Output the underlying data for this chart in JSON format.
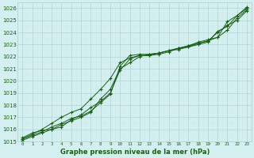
{
  "bg_color": "#d4efef",
  "grid_color_major": "#b8d8d8",
  "grid_color_minor": "#c8e8e8",
  "line_color": "#1a5e1a",
  "text_color": "#1a5e1a",
  "xlabel": "Graphe pression niveau de la mer (hPa)",
  "ylim": [
    1015,
    1026.5
  ],
  "xlim": [
    -0.5,
    23.5
  ],
  "yticks": [
    1015,
    1016,
    1017,
    1018,
    1019,
    1020,
    1021,
    1022,
    1023,
    1024,
    1025,
    1026
  ],
  "xticks": [
    0,
    1,
    2,
    3,
    4,
    5,
    6,
    7,
    8,
    9,
    10,
    11,
    12,
    13,
    14,
    15,
    16,
    17,
    18,
    19,
    20,
    21,
    22,
    23
  ],
  "series": [
    [
      1015.3,
      1015.7,
      1015.9,
      1016.0,
      1016.2,
      1016.8,
      1017.2,
      1017.8,
      1018.3,
      1019.0,
      1020.9,
      1021.8,
      1022.1,
      1022.1,
      1022.3,
      1022.5,
      1022.7,
      1022.9,
      1023.2,
      1023.4,
      1023.6,
      1024.9,
      1025.4,
      1026.1
    ],
    [
      1015.2,
      1015.5,
      1015.8,
      1016.2,
      1016.5,
      1016.9,
      1017.1,
      1017.5,
      1018.2,
      1018.9,
      1021.2,
      1022.1,
      1022.2,
      1022.2,
      1022.3,
      1022.5,
      1022.6,
      1022.8,
      1023.1,
      1023.3,
      1023.6,
      1024.2,
      1025.2,
      1025.9
    ],
    [
      1015.1,
      1015.4,
      1015.7,
      1016.0,
      1016.4,
      1016.7,
      1017.0,
      1017.4,
      1018.5,
      1019.3,
      1021.0,
      1021.5,
      1022.0,
      1022.2,
      1022.3,
      1022.5,
      1022.7,
      1022.9,
      1023.1,
      1023.3,
      1024.0,
      1024.6,
      1025.0,
      1025.8
    ],
    [
      1015.2,
      1015.6,
      1016.0,
      1016.5,
      1017.0,
      1017.4,
      1017.7,
      1018.5,
      1019.3,
      1020.2,
      1021.5,
      1021.9,
      1022.1,
      1022.1,
      1022.2,
      1022.4,
      1022.7,
      1022.8,
      1023.0,
      1023.2,
      1024.1,
      1024.5,
      1025.4,
      1026.0
    ]
  ]
}
